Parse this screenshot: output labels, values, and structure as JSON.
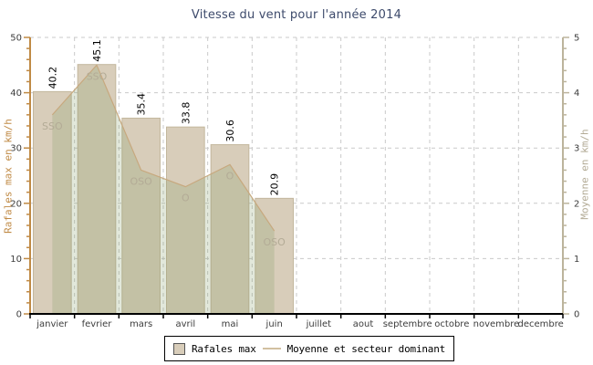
{
  "title": "Vitesse du vent pour l'année 2014",
  "colors": {
    "title": "#3d4a6b",
    "bar_fill": "#d8cdba",
    "bar_border": "#c3b79d",
    "area_fill": "rgba(125,150,90,0.22)",
    "line": "#c7a87e",
    "grid": "#c9c9c9",
    "left_axis": "#c08a45",
    "right_axis": "#bcb49c",
    "right_axis_title": "#b3ab96",
    "sector_label": "#b3ab96",
    "tick_label": "#3c3c3c",
    "month_label": "#3c3c3c",
    "value_label": "#000000",
    "x_axis": "#000000",
    "legend_line": "#d2c0a0"
  },
  "chart_data": {
    "type": "bar",
    "title": "Vitesse du vent pour l'année 2014",
    "categories": [
      "janvier",
      "fevrier",
      "mars",
      "avril",
      "mai",
      "juin",
      "juillet",
      "aout",
      "septembre",
      "octobre",
      "novembre",
      "decembre"
    ],
    "series": [
      {
        "name": "Rafales max",
        "type": "bar",
        "axis": "left",
        "values": [
          40.2,
          45.1,
          35.4,
          33.8,
          30.6,
          20.9,
          null,
          null,
          null,
          null,
          null,
          null
        ]
      },
      {
        "name": "Moyenne et secteur dominant",
        "type": "area",
        "axis": "right",
        "values": [
          3.6,
          4.5,
          2.6,
          2.3,
          2.7,
          1.5,
          null,
          null,
          null,
          null,
          null,
          null
        ],
        "sectors": [
          "SSO",
          "SSO",
          "OSO",
          "O",
          "O",
          "OSO",
          null,
          null,
          null,
          null,
          null,
          null
        ]
      }
    ],
    "left_axis": {
      "label": "Rafales max en km/h",
      "min": 0,
      "max": 50,
      "ticks": [
        0,
        10,
        20,
        30,
        40,
        50
      ],
      "minor_step": 2
    },
    "right_axis": {
      "label": "Moyenne en km/h",
      "min": 0,
      "max": 5,
      "ticks": [
        0,
        1,
        2,
        3,
        4,
        5
      ],
      "minor_step": 0.2
    },
    "grid": "dashed",
    "legend_position": "bottom"
  }
}
